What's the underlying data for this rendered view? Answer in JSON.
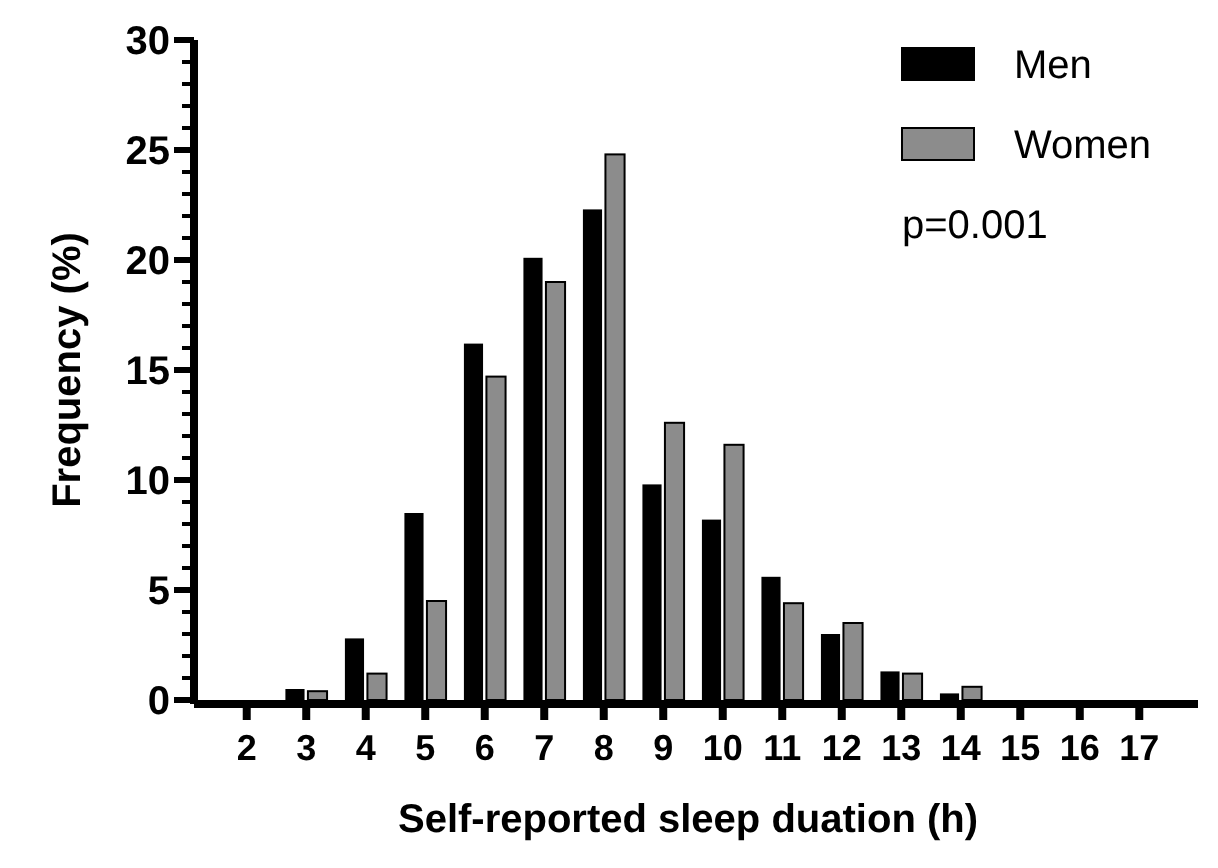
{
  "chart_data": {
    "type": "bar",
    "xlabel": "Self-reported sleep duation (h)",
    "ylabel": "Frequency (%)",
    "categories": [
      "2",
      "3",
      "4",
      "5",
      "6",
      "7",
      "8",
      "9",
      "10",
      "11",
      "12",
      "13",
      "14",
      "15",
      "16",
      "17"
    ],
    "series": [
      {
        "name": "Men",
        "color": "#000000",
        "values": [
          0,
          0.5,
          2.8,
          8.5,
          16.2,
          20.1,
          22.3,
          9.8,
          8.2,
          5.6,
          3.0,
          1.3,
          0.3,
          0,
          0,
          0
        ]
      },
      {
        "name": "Women",
        "color": "#8c8c8c",
        "values": [
          0,
          0.4,
          1.2,
          4.5,
          14.7,
          19.0,
          24.8,
          12.6,
          11.6,
          4.4,
          3.5,
          1.2,
          0.6,
          0,
          0,
          0
        ]
      }
    ],
    "ylim": [
      0,
      30
    ],
    "yticks": [
      0,
      {
        "value": 1,
        "label": null
      },
      {
        "value": 2,
        "label": null
      },
      {
        "value": 3,
        "label": null
      },
      {
        "value": 4,
        "label": null
      },
      5,
      {
        "value": 6,
        "label": null
      },
      {
        "value": 7,
        "label": null
      },
      {
        "value": 8,
        "label": null
      },
      {
        "value": 9,
        "label": null
      },
      10,
      {
        "value": 11,
        "label": null
      },
      {
        "value": 12,
        "label": null
      },
      {
        "value": 13,
        "label": null
      },
      {
        "value": 14,
        "label": null
      },
      15,
      {
        "value": 16,
        "label": null
      },
      {
        "value": 17,
        "label": null
      },
      {
        "value": 18,
        "label": null
      },
      {
        "value": 19,
        "label": null
      },
      20,
      {
        "value": 21,
        "label": null
      },
      {
        "value": 22,
        "label": null
      },
      {
        "value": 23,
        "label": null
      },
      {
        "value": 24,
        "label": null
      },
      25,
      {
        "value": 26,
        "label": null
      },
      {
        "value": 27,
        "label": null
      },
      {
        "value": 28,
        "label": null
      },
      {
        "value": 29,
        "label": null
      },
      30
    ],
    "annotations": [
      "p=0.001"
    ],
    "legend": "top right",
    "grid": false
  }
}
